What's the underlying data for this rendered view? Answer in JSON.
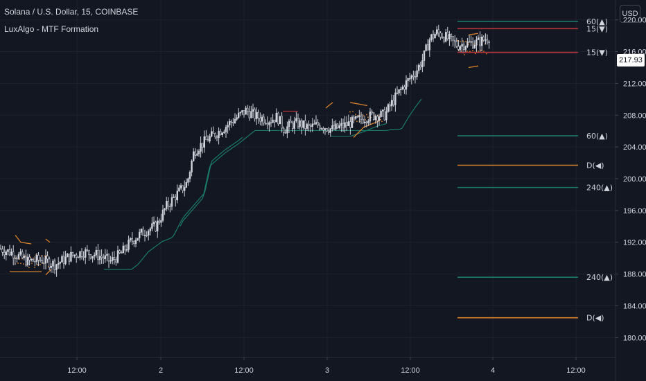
{
  "header": {
    "title": "Solana / U.S. Dollar, 15, COINBASE",
    "indicator": "LuxAlgo - MTF Formation"
  },
  "currency_button": "USD",
  "last_price_label": "217.93",
  "colors": {
    "background": "#131722",
    "grid": "#1e222d",
    "candle": "#d1d4dc",
    "bull_line": "#1b7a6a",
    "bear_line": "#b2323a",
    "neutral_line": "#d9822b",
    "axis_text": "#d1d4dc"
  },
  "chart_data": {
    "type": "candlestick",
    "symbol": "Solana / U.S. Dollar",
    "timeframe": "15",
    "exchange": "COINBASE",
    "ylim": [
      177.5,
      222.5
    ],
    "y_ticks": [
      180,
      184,
      188,
      192,
      196,
      200,
      204,
      208,
      212,
      216,
      220
    ],
    "y_tick_labels": [
      "180.00",
      "184.00",
      "188.00",
      "192.00",
      "196.00",
      "200.00",
      "204.00",
      "208.00",
      "212.00",
      "216.00",
      "220.00"
    ],
    "x_tick_labels": [
      "12:00",
      "2",
      "12:00",
      "3",
      "12:00",
      "4",
      "12:00"
    ],
    "last_price": 217.93,
    "close_path": [
      [
        0,
        191.2
      ],
      [
        20,
        190.6
      ],
      [
        40,
        189.6
      ],
      [
        60,
        189.8
      ],
      [
        80,
        189.2
      ],
      [
        100,
        190.2
      ],
      [
        120,
        190.8
      ],
      [
        140,
        190.4
      ],
      [
        160,
        189.6
      ],
      [
        175,
        190.6
      ],
      [
        190,
        192.2
      ],
      [
        210,
        193.5
      ],
      [
        225,
        194.0
      ],
      [
        240,
        196.5
      ],
      [
        250,
        197.5
      ],
      [
        260,
        198.5
      ],
      [
        270,
        199.5
      ],
      [
        280,
        203.5
      ],
      [
        300,
        205.0
      ],
      [
        320,
        206.2
      ],
      [
        340,
        207.6
      ],
      [
        355,
        208.6
      ],
      [
        370,
        207.8
      ],
      [
        390,
        207.4
      ],
      [
        400,
        207.8
      ],
      [
        410,
        206.2
      ],
      [
        420,
        206.8
      ],
      [
        430,
        207.0
      ],
      [
        445,
        206.4
      ],
      [
        460,
        206.8
      ],
      [
        480,
        206.2
      ],
      [
        500,
        206.8
      ],
      [
        520,
        207.5
      ],
      [
        540,
        208.0
      ],
      [
        555,
        208.0
      ],
      [
        565,
        209.5
      ],
      [
        575,
        210.8
      ],
      [
        590,
        212.5
      ],
      [
        600,
        213.5
      ],
      [
        610,
        215.0
      ],
      [
        620,
        217.6
      ],
      [
        630,
        218.4
      ],
      [
        640,
        218.0
      ],
      [
        650,
        217.4
      ],
      [
        660,
        216.8
      ],
      [
        672,
        217.0
      ],
      [
        690,
        217.2
      ],
      [
        708,
        217.9
      ]
    ],
    "levels": [
      {
        "label": "60(▲)",
        "price": 219.8,
        "kind": "bull"
      },
      {
        "label": "15(▼)",
        "price": 218.9,
        "kind": "bear"
      },
      {
        "label": "15(▼)",
        "price": 215.9,
        "kind": "bear"
      },
      {
        "label": "60(▲)",
        "price": 205.4,
        "kind": "bull"
      },
      {
        "label": "D(◀)",
        "price": 201.7,
        "kind": "neutral"
      },
      {
        "label": "240(▲)",
        "price": 198.9,
        "kind": "bull"
      },
      {
        "label": "240(▲)",
        "price": 187.6,
        "kind": "bull"
      },
      {
        "label": "D(◀)",
        "price": 182.5,
        "kind": "neutral"
      }
    ]
  }
}
